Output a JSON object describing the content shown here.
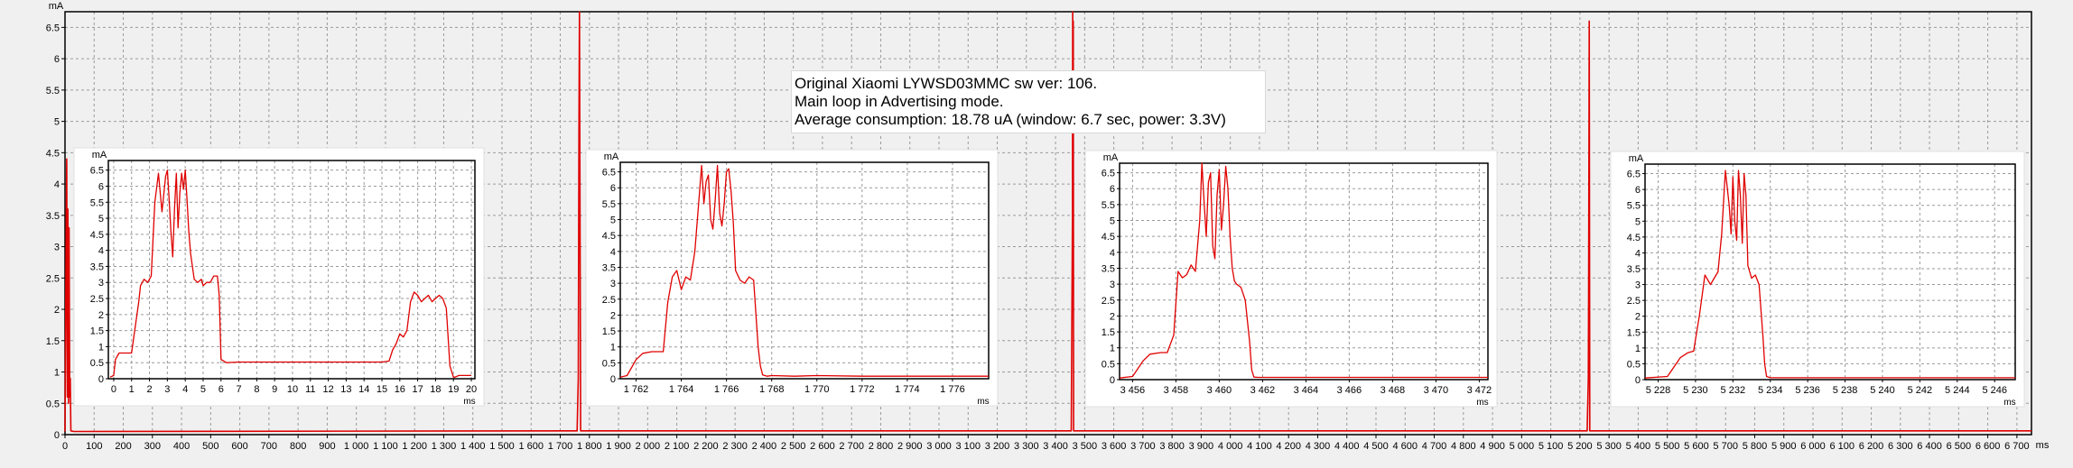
{
  "chart_data": [
    {
      "type": "line",
      "role": "main",
      "title": "",
      "xlabel": "ms",
      "ylabel": "mA",
      "xlim": [
        0,
        6750
      ],
      "ylim": [
        0,
        6.75
      ],
      "xticks": [
        0,
        100,
        200,
        300,
        400,
        500,
        600,
        700,
        800,
        900,
        1000,
        1100,
        1200,
        1300,
        1400,
        1500,
        1600,
        1700,
        1800,
        1900,
        2000,
        2100,
        2200,
        2300,
        2400,
        2500,
        2600,
        2700,
        2800,
        2900,
        3000,
        3100,
        3200,
        3300,
        3400,
        3500,
        3600,
        3700,
        3800,
        3900,
        4000,
        4100,
        4200,
        4300,
        4400,
        4500,
        4600,
        4700,
        4800,
        4900,
        5000,
        5100,
        5200,
        5300,
        5400,
        5500,
        5600,
        5700,
        5800,
        5900,
        6000,
        6100,
        6200,
        6300,
        6400,
        6500,
        6600,
        6700
      ],
      "xtick_labels": [
        "0",
        "100",
        "200",
        "300",
        "400",
        "500",
        "600",
        "700",
        "800",
        "900",
        "1 000",
        "1 100",
        "1 200",
        "1 300",
        "1 400",
        "1 500",
        "1 600",
        "1 700",
        "1 800",
        "1 900",
        "2 000",
        "2 100",
        "2 200",
        "2 300",
        "2 400",
        "2 500",
        "2 600",
        "2 700",
        "2 800",
        "2 900",
        "3 000",
        "3 100",
        "3 200",
        "3 300",
        "3 400",
        "3 500",
        "3 600",
        "3 700",
        "3 800",
        "3 900",
        "4 000",
        "4 100",
        "4 200",
        "4 300",
        "4 400",
        "4 500",
        "4 600",
        "4 700",
        "4 800",
        "4 900",
        "5 000",
        "5 100",
        "5 200",
        "5 300",
        "5 400",
        "5 500",
        "5 600",
        "5 700",
        "5 800",
        "5 900",
        "6 000",
        "6 100",
        "6 200",
        "6 300",
        "6 400",
        "6 500",
        "6 600",
        "6 700"
      ],
      "yticks": [
        0,
        0.5,
        1,
        1.5,
        2,
        2.5,
        3,
        3.5,
        4,
        4.5,
        5,
        5.5,
        6,
        6.5
      ],
      "ytick_labels": [
        "0",
        "0.5",
        "1",
        "1.5",
        "2",
        "2.5",
        "3",
        "3.5",
        "4",
        "4.5",
        "5",
        "5.5",
        "6",
        "6.5"
      ],
      "grid": true,
      "series": [
        {
          "color": "#e00000",
          "x": [
            0,
            4,
            6,
            8,
            10,
            12,
            14,
            16,
            18,
            20,
            30,
            1758,
            1762,
            1764,
            1766,
            1768,
            1770,
            1774,
            3454,
            3458,
            3459,
            3460,
            3461,
            3462,
            3465,
            5225,
            5229,
            5230,
            5231,
            5232,
            5233,
            5234,
            5236,
            6750
          ],
          "y": [
            0.05,
            3.2,
            4.4,
            0.6,
            3.6,
            0.5,
            3.3,
            0.6,
            0.9,
            0.06,
            0.05,
            0.06,
            0.9,
            4.8,
            6.8,
            3.1,
            0.06,
            0.06,
            0.06,
            3.4,
            6.9,
            4.8,
            6.6,
            0.06,
            0.06,
            0.06,
            0.9,
            2.2,
            4.6,
            6.6,
            3.4,
            0.06,
            0.06,
            0.06
          ]
        }
      ]
    },
    {
      "type": "line",
      "role": "inset",
      "xlabel": "ms",
      "ylabel": "mA",
      "xlim": [
        -0.3,
        20.2
      ],
      "ylim": [
        0,
        6.8
      ],
      "xticks": [
        0,
        1,
        2,
        3,
        4,
        5,
        6,
        7,
        8,
        9,
        10,
        11,
        12,
        13,
        14,
        15,
        16,
        17,
        18,
        19,
        20
      ],
      "xtick_labels": [
        "0",
        "1",
        "2",
        "3",
        "4",
        "5",
        "6",
        "7",
        "8",
        "9",
        "10",
        "11",
        "12",
        "13",
        "14",
        "15",
        "16",
        "17",
        "18",
        "19",
        "20"
      ],
      "yticks": [
        0,
        0.5,
        1,
        1.5,
        2,
        2.5,
        3,
        3.5,
        4,
        4.5,
        5,
        5.5,
        6,
        6.5
      ],
      "ytick_labels": [
        "0",
        "0.5",
        "1",
        "1.5",
        "2",
        "2.5",
        "3",
        "3.5",
        "4",
        "4.5",
        "5",
        "5.5",
        "6",
        "6.5"
      ],
      "grid": true,
      "series": [
        {
          "color": "#e00000",
          "x": [
            -0.2,
            0,
            0.1,
            0.3,
            0.5,
            1.0,
            1.1,
            1.4,
            1.5,
            1.7,
            1.9,
            2.1,
            2.3,
            2.5,
            2.7,
            2.9,
            3.0,
            3.1,
            3.2,
            3.3,
            3.4,
            3.5,
            3.6,
            3.7,
            3.8,
            3.9,
            4.0,
            4.1,
            4.2,
            4.3,
            4.5,
            4.7,
            4.9,
            5.0,
            5.2,
            5.4,
            5.6,
            5.8,
            5.9,
            6.0,
            6.3,
            7,
            8,
            9,
            10,
            11,
            12,
            13,
            14,
            15,
            15.4,
            15.6,
            15.8,
            16.0,
            16.2,
            16.4,
            16.6,
            16.8,
            17.0,
            17.2,
            17.4,
            17.6,
            17.8,
            18.0,
            18.2,
            18.4,
            18.6,
            18.8,
            19.0,
            19.1,
            19.3,
            19.5,
            19.7,
            20.0
          ],
          "y": [
            0.05,
            0.1,
            0.6,
            0.8,
            0.8,
            0.8,
            1.2,
            2.4,
            2.9,
            3.1,
            3.0,
            3.2,
            5.5,
            6.4,
            5.2,
            6.3,
            6.5,
            5.6,
            4.6,
            3.8,
            5.3,
            6.4,
            4.7,
            5.8,
            6.4,
            5.9,
            6.5,
            5.6,
            4.6,
            3.9,
            3.1,
            3.0,
            3.1,
            2.9,
            3.0,
            3.0,
            3.2,
            3.2,
            2.6,
            0.6,
            0.5,
            0.52,
            0.52,
            0.52,
            0.52,
            0.52,
            0.52,
            0.52,
            0.52,
            0.52,
            0.55,
            0.9,
            1.1,
            1.4,
            1.3,
            1.5,
            2.4,
            2.7,
            2.6,
            2.4,
            2.5,
            2.6,
            2.4,
            2.5,
            2.6,
            2.5,
            2.2,
            0.4,
            0.05,
            0.05,
            0.1,
            0.1,
            0.1,
            0.1
          ]
        }
      ]
    },
    {
      "type": "line",
      "role": "inset",
      "xlabel": "ms",
      "ylabel": "mA",
      "xlim": [
        1761.3,
        1777.6
      ],
      "ylim": [
        0,
        6.8
      ],
      "xticks": [
        1762,
        1764,
        1766,
        1768,
        1770,
        1772,
        1774,
        1776
      ],
      "xtick_labels": [
        "1 762",
        "1 764",
        "1 766",
        "1 768",
        "1 770",
        "1 772",
        "1 774",
        "1 776"
      ],
      "yticks": [
        0,
        0.5,
        1,
        1.5,
        2,
        2.5,
        3,
        3.5,
        4,
        4.5,
        5,
        5.5,
        6,
        6.5
      ],
      "ytick_labels": [
        "0",
        "0.5",
        "1",
        "1.5",
        "2",
        "2.5",
        "3",
        "3.5",
        "4",
        "4.5",
        "5",
        "5.5",
        "6",
        "6.5"
      ],
      "grid": true,
      "series": [
        {
          "color": "#e00000",
          "x": [
            1761.3,
            1761.6,
            1762.0,
            1762.3,
            1762.7,
            1763.2,
            1763.4,
            1763.6,
            1763.8,
            1764.0,
            1764.2,
            1764.4,
            1764.6,
            1764.8,
            1764.9,
            1765.0,
            1765.1,
            1765.2,
            1765.3,
            1765.4,
            1765.5,
            1765.6,
            1765.7,
            1765.8,
            1765.9,
            1766.0,
            1766.1,
            1766.2,
            1766.3,
            1766.4,
            1766.6,
            1766.8,
            1767.0,
            1767.2,
            1767.4,
            1767.5,
            1767.6,
            1767.8,
            1768.0,
            1769,
            1770,
            1772,
            1774,
            1776,
            1777.6
          ],
          "y": [
            0.05,
            0.1,
            0.6,
            0.8,
            0.85,
            0.85,
            2.4,
            3.2,
            3.4,
            2.8,
            3.2,
            3.1,
            4.0,
            5.8,
            6.7,
            5.5,
            6.2,
            6.4,
            5.0,
            4.7,
            5.6,
            6.7,
            5.2,
            4.8,
            5.5,
            6.5,
            6.6,
            5.9,
            4.9,
            3.4,
            3.1,
            3.0,
            3.2,
            3.1,
            1.0,
            0.4,
            0.12,
            0.08,
            0.1,
            0.08,
            0.1,
            0.08,
            0.08,
            0.08,
            0.08
          ]
        }
      ]
    },
    {
      "type": "line",
      "role": "inset",
      "xlabel": "ms",
      "ylabel": "mA",
      "xlim": [
        3455.4,
        3472.4
      ],
      "ylim": [
        0,
        6.8
      ],
      "xticks": [
        3456,
        3458,
        3460,
        3462,
        3464,
        3466,
        3468,
        3470,
        3472
      ],
      "xtick_labels": [
        "3 456",
        "3 458",
        "3 460",
        "3 462",
        "3 464",
        "3 466",
        "3 468",
        "3 470",
        "3 472"
      ],
      "yticks": [
        0,
        0.5,
        1,
        1.5,
        2,
        2.5,
        3,
        3.5,
        4,
        4.5,
        5,
        5.5,
        6,
        6.5
      ],
      "ytick_labels": [
        "0",
        "0.5",
        "1",
        "1.5",
        "2",
        "2.5",
        "3",
        "3.5",
        "4",
        "4.5",
        "5",
        "5.5",
        "6",
        "6.5"
      ],
      "grid": true,
      "series": [
        {
          "color": "#e00000",
          "x": [
            3455.4,
            3456.0,
            3456.5,
            3456.8,
            3457.3,
            3457.6,
            3457.9,
            3458.1,
            3458.3,
            3458.5,
            3458.7,
            3458.9,
            3459.1,
            3459.2,
            3459.3,
            3459.4,
            3459.5,
            3459.6,
            3459.7,
            3459.8,
            3459.9,
            3460.0,
            3460.1,
            3460.2,
            3460.3,
            3460.4,
            3460.5,
            3460.6,
            3460.7,
            3460.8,
            3461.0,
            3461.2,
            3461.4,
            3461.5,
            3461.6,
            3461.8,
            3462.0,
            3464,
            3466,
            3468,
            3470,
            3472.4
          ],
          "y": [
            0.05,
            0.1,
            0.6,
            0.8,
            0.85,
            0.85,
            1.4,
            3.4,
            3.2,
            3.3,
            3.6,
            3.4,
            5.0,
            6.8,
            5.6,
            4.5,
            6.2,
            6.5,
            4.2,
            3.8,
            5.8,
            6.6,
            4.7,
            5.5,
            6.7,
            6.0,
            4.5,
            3.5,
            3.1,
            3.0,
            2.9,
            2.5,
            1.2,
            0.3,
            0.08,
            0.07,
            0.07,
            0.07,
            0.07,
            0.07,
            0.07,
            0.07
          ]
        }
      ]
    },
    {
      "type": "line",
      "role": "inset",
      "xlabel": "ms",
      "ylabel": "mA",
      "xlim": [
        5227.3,
        5247.1
      ],
      "ylim": [
        0,
        6.8
      ],
      "xticks": [
        5228,
        5230,
        5232,
        5234,
        5236,
        5238,
        5240,
        5242,
        5244,
        5246
      ],
      "xtick_labels": [
        "5 228",
        "5 230",
        "5 232",
        "5 234",
        "5 236",
        "5 238",
        "5 240",
        "5 242",
        "5 244",
        "5 246"
      ],
      "yticks": [
        0,
        0.5,
        1,
        1.5,
        2,
        2.5,
        3,
        3.5,
        4,
        4.5,
        5,
        5.5,
        6,
        6.5
      ],
      "ytick_labels": [
        "0",
        "0.5",
        "1",
        "1.5",
        "2",
        "2.5",
        "3",
        "3.5",
        "4",
        "4.5",
        "5",
        "5.5",
        "6",
        "6.5"
      ],
      "grid": true,
      "series": [
        {
          "color": "#e00000",
          "x": [
            5227.3,
            5228.5,
            5229.2,
            5229.6,
            5229.9,
            5230.2,
            5230.5,
            5230.8,
            5231.0,
            5231.2,
            5231.4,
            5231.6,
            5231.8,
            5231.9,
            5232.0,
            5232.1,
            5232.2,
            5232.3,
            5232.4,
            5232.5,
            5232.6,
            5232.7,
            5232.8,
            5233.0,
            5233.2,
            5233.4,
            5233.6,
            5233.7,
            5233.8,
            5234.0,
            5236,
            5238,
            5240,
            5242,
            5244,
            5246,
            5247.1
          ],
          "y": [
            0.05,
            0.1,
            0.7,
            0.85,
            0.9,
            2.0,
            3.3,
            3.0,
            3.2,
            3.4,
            4.6,
            6.6,
            5.5,
            4.6,
            6.4,
            5.0,
            4.4,
            6.6,
            5.8,
            4.3,
            6.5,
            5.8,
            3.6,
            3.2,
            3.3,
            3.0,
            1.4,
            0.5,
            0.1,
            0.06,
            0.06,
            0.06,
            0.06,
            0.06,
            0.06,
            0.06,
            0.06
          ]
        }
      ]
    }
  ],
  "annotation": {
    "line1": "Original Xiaomi LYWSD03MMC sw ver: 106.",
    "line2": "Main loop in Advertising mode.",
    "line3": "Average consumption: 18.78 uA (window: 6.7 sec, power: 3.3V)"
  }
}
